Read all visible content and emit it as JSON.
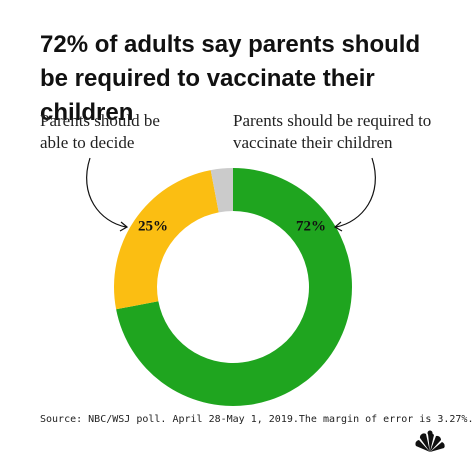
{
  "chart_data": {
    "type": "donut",
    "title": "72% of adults say parents should be required to vaccinate their children",
    "categories": [
      "Parents should be required to vaccinate their children",
      "Parents should be able to decide",
      null
    ],
    "values": [
      72,
      25,
      3
    ],
    "value_labels": [
      "72%",
      "25%",
      null
    ],
    "colors": [
      "#1fa51f",
      "#fbbe12",
      "#cbcbcb"
    ],
    "source": "Source: NBC/WSJ poll. April 28-May 1, 2019.The margin of error is 3.27%."
  }
}
